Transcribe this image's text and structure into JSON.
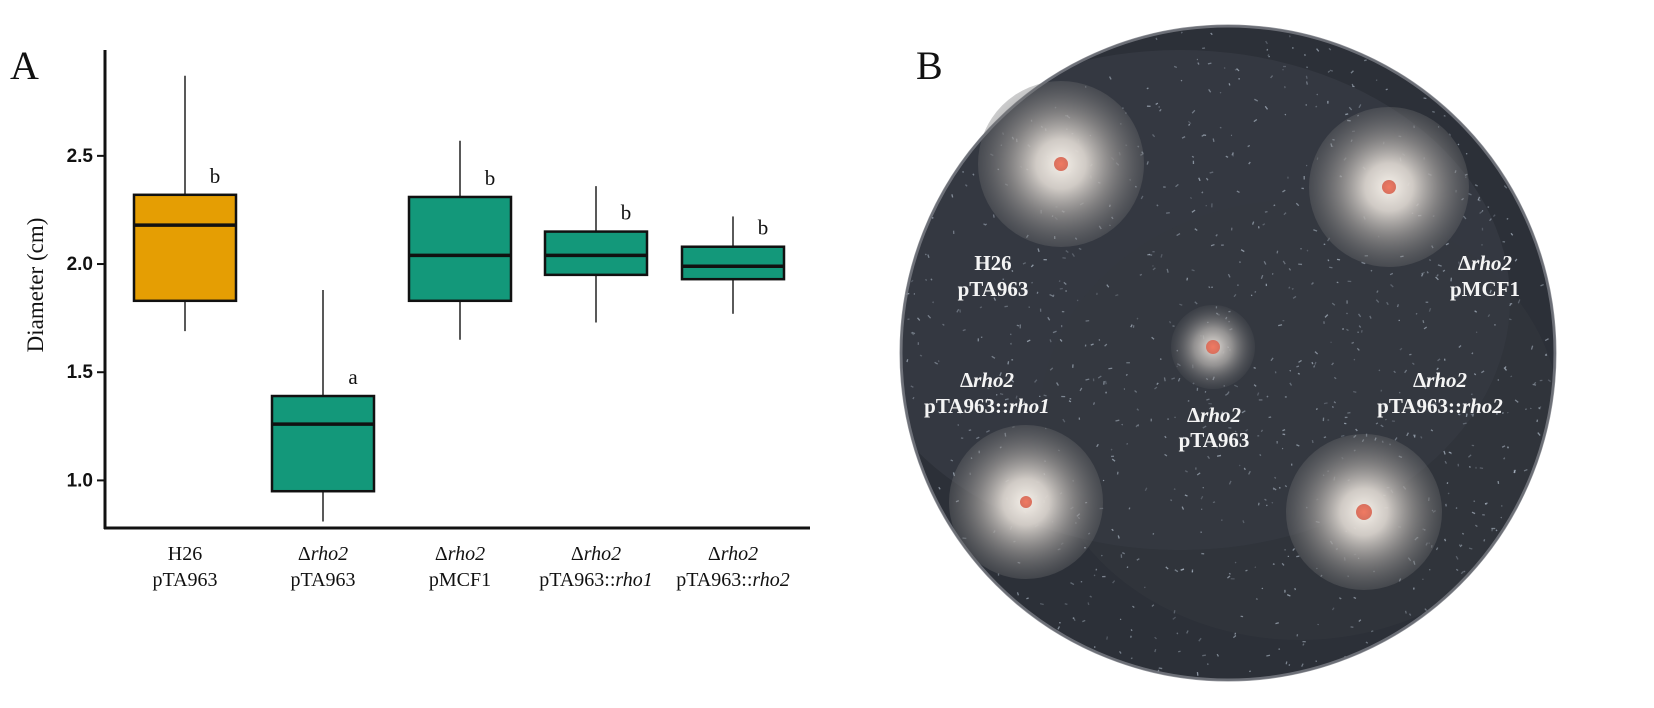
{
  "figure": {
    "panel_a_label": "A",
    "panel_b_label": "B"
  },
  "colors": {
    "wild_type": "#E59E03",
    "mutant": "#13987A",
    "plate_background": "#2C3038",
    "colony": "#E8735E"
  },
  "chart_data": {
    "type": "box",
    "ylabel": "Diameter (cm)",
    "xlabel": "",
    "ylim": [
      0.78,
      2.98
    ],
    "yticks": [
      1.0,
      1.5,
      2.0,
      2.5
    ],
    "ytick_labels": [
      "1.0",
      "1.5",
      "2.0",
      "2.5"
    ],
    "grid": false,
    "legend": "none",
    "categories": [
      {
        "line1": "H26",
        "line2_prefix": "pTA963",
        "line2_italic": "",
        "line1_italic": false
      },
      {
        "line1_symbol": "Δ",
        "line1": "rho2",
        "line2_prefix": "pTA963",
        "line2_italic": "",
        "line1_italic": true
      },
      {
        "line1_symbol": "Δ",
        "line1": "rho2",
        "line2_prefix": "pMCF1",
        "line2_italic": "",
        "line1_italic": true
      },
      {
        "line1_symbol": "Δ",
        "line1": "rho2",
        "line2_prefix": "pTA963::",
        "line2_italic": "rho1",
        "line1_italic": true
      },
      {
        "line1_symbol": "Δ",
        "line1": "rho2",
        "line2_prefix": "pTA963::",
        "line2_italic": "rho2",
        "line1_italic": true
      }
    ],
    "boxes": [
      {
        "min": 1.69,
        "q1": 1.83,
        "median": 2.18,
        "q3": 2.32,
        "max": 2.87,
        "letter": "b",
        "color_key": "wild_type"
      },
      {
        "min": 0.81,
        "q1": 0.95,
        "median": 1.26,
        "q3": 1.39,
        "max": 1.88,
        "letter": "a",
        "color_key": "mutant"
      },
      {
        "min": 1.65,
        "q1": 1.83,
        "median": 2.04,
        "q3": 2.31,
        "max": 2.57,
        "letter": "b",
        "color_key": "mutant"
      },
      {
        "min": 1.73,
        "q1": 1.95,
        "median": 2.04,
        "q3": 2.15,
        "max": 2.36,
        "letter": "b",
        "color_key": "mutant"
      },
      {
        "min": 1.77,
        "q1": 1.93,
        "median": 1.99,
        "q3": 2.08,
        "max": 2.22,
        "letter": "b",
        "color_key": "mutant"
      }
    ]
  },
  "plate": {
    "labels": [
      {
        "id": "h26",
        "line1": "H26",
        "line1_italic": false,
        "line1_symbol": "",
        "line2_prefix": "pTA963",
        "line2_italic": ""
      },
      {
        "id": "pmcf1",
        "line1": "rho2",
        "line1_italic": true,
        "line1_symbol": "Δ",
        "line2_prefix": "pMCF1",
        "line2_italic": ""
      },
      {
        "id": "center",
        "line1": "rho2",
        "line1_italic": true,
        "line1_symbol": "Δ",
        "line2_prefix": "pTA963",
        "line2_italic": ""
      },
      {
        "id": "rho1",
        "line1": "rho2",
        "line1_italic": true,
        "line1_symbol": "Δ",
        "line2_prefix": "pTA963::",
        "line2_italic": "rho1"
      },
      {
        "id": "rho2",
        "line1": "rho2",
        "line1_italic": true,
        "line1_symbol": "Δ",
        "line2_prefix": "pTA963::",
        "line2_italic": "rho2"
      }
    ]
  }
}
